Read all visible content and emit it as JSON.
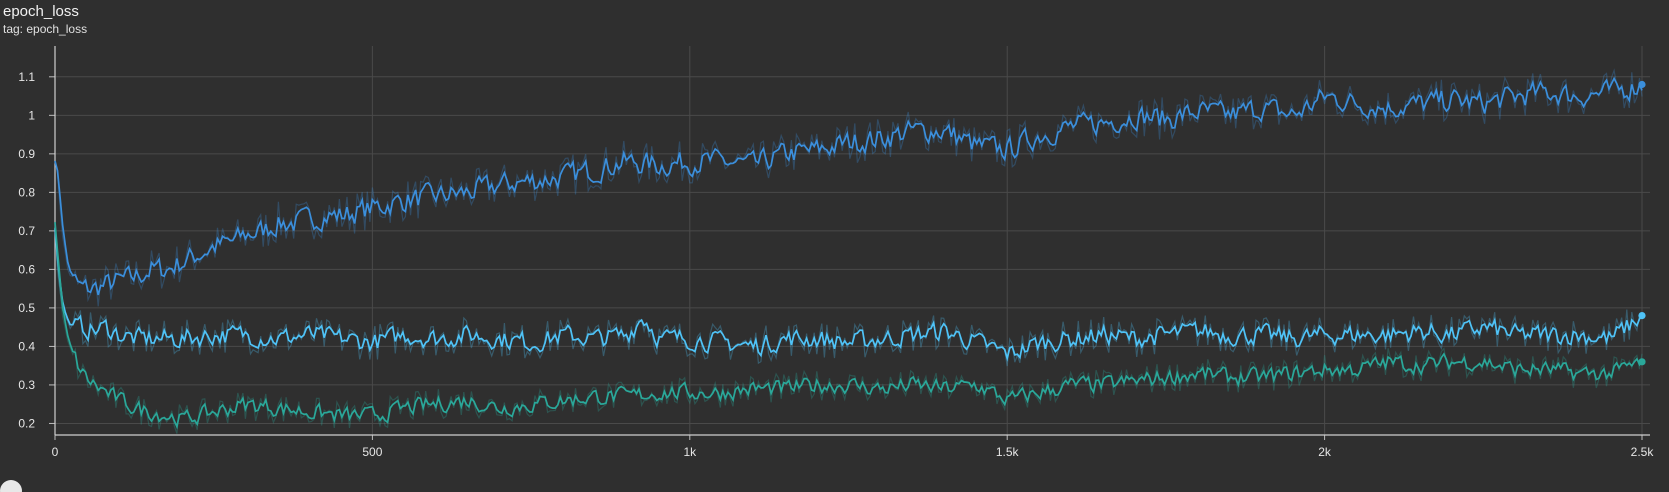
{
  "header": {
    "title": "epoch_loss",
    "tag_label": "tag:",
    "tag_value": "epoch_loss"
  },
  "chart_data": {
    "type": "line",
    "title": "epoch_loss",
    "xlabel": "",
    "ylabel": "",
    "xlim": [
      0,
      2500
    ],
    "ylim": [
      0.17,
      1.18
    ],
    "x_ticks": [
      {
        "value": 0,
        "label": "0"
      },
      {
        "value": 500,
        "label": "500"
      },
      {
        "value": 1000,
        "label": "1k"
      },
      {
        "value": 1500,
        "label": "1.5k"
      },
      {
        "value": 2000,
        "label": "2k"
      },
      {
        "value": 2500,
        "label": "2.5k"
      }
    ],
    "y_ticks": [
      {
        "value": 0.2,
        "label": "0.2"
      },
      {
        "value": 0.3,
        "label": "0.3"
      },
      {
        "value": 0.4,
        "label": "0.4"
      },
      {
        "value": 0.5,
        "label": "0.5"
      },
      {
        "value": 0.6,
        "label": "0.6"
      },
      {
        "value": 0.7,
        "label": "0.7"
      },
      {
        "value": 0.8,
        "label": "0.8"
      },
      {
        "value": 0.9,
        "label": "0.9"
      },
      {
        "value": 1.0,
        "label": "1"
      },
      {
        "value": 1.1,
        "label": "1.1"
      }
    ],
    "grid": true,
    "series": [
      {
        "color": "#3b8fdc",
        "x": [
          0,
          5,
          10,
          15,
          20,
          30,
          40,
          60,
          80,
          100,
          125,
          150,
          175,
          200,
          225,
          250,
          275,
          300,
          325,
          350,
          375,
          400,
          425,
          450,
          475,
          500,
          550,
          600,
          650,
          700,
          750,
          800,
          850,
          900,
          950,
          1000,
          1050,
          1100,
          1150,
          1200,
          1250,
          1300,
          1350,
          1400,
          1450,
          1500,
          1550,
          1600,
          1650,
          1700,
          1750,
          1800,
          1850,
          1900,
          1950,
          2000,
          2050,
          2100,
          2150,
          2200,
          2250,
          2300,
          2350,
          2400,
          2450,
          2500
        ],
        "y": [
          0.89,
          0.83,
          0.72,
          0.65,
          0.6,
          0.57,
          0.55,
          0.55,
          0.56,
          0.57,
          0.58,
          0.6,
          0.6,
          0.62,
          0.64,
          0.66,
          0.67,
          0.69,
          0.7,
          0.72,
          0.72,
          0.73,
          0.74,
          0.74,
          0.75,
          0.76,
          0.78,
          0.79,
          0.8,
          0.82,
          0.83,
          0.84,
          0.86,
          0.88,
          0.87,
          0.88,
          0.88,
          0.87,
          0.9,
          0.91,
          0.93,
          0.94,
          0.96,
          0.96,
          0.92,
          0.91,
          0.95,
          0.97,
          0.98,
          1.0,
          0.99,
          1.01,
          1.0,
          1.02,
          1.0,
          1.05,
          1.03,
          1.02,
          1.03,
          1.04,
          1.03,
          1.05,
          1.06,
          1.05,
          1.06,
          1.08
        ]
      },
      {
        "color": "#4fc3f7",
        "x": [
          0,
          5,
          10,
          15,
          20,
          30,
          40,
          60,
          80,
          100,
          125,
          150,
          175,
          200,
          250,
          300,
          350,
          400,
          450,
          500,
          550,
          600,
          650,
          700,
          750,
          800,
          850,
          900,
          925,
          950,
          1000,
          1050,
          1100,
          1150,
          1200,
          1250,
          1300,
          1350,
          1400,
          1450,
          1500,
          1550,
          1600,
          1650,
          1700,
          1750,
          1800,
          1850,
          1900,
          1950,
          2000,
          2050,
          2100,
          2150,
          2200,
          2250,
          2300,
          2350,
          2400,
          2450,
          2500
        ],
        "y": [
          0.71,
          0.58,
          0.51,
          0.48,
          0.46,
          0.45,
          0.45,
          0.44,
          0.45,
          0.43,
          0.42,
          0.42,
          0.42,
          0.42,
          0.43,
          0.43,
          0.42,
          0.43,
          0.42,
          0.41,
          0.43,
          0.42,
          0.43,
          0.42,
          0.41,
          0.43,
          0.42,
          0.43,
          0.48,
          0.42,
          0.42,
          0.41,
          0.4,
          0.42,
          0.42,
          0.41,
          0.42,
          0.43,
          0.44,
          0.41,
          0.38,
          0.41,
          0.42,
          0.43,
          0.42,
          0.43,
          0.44,
          0.43,
          0.43,
          0.42,
          0.43,
          0.43,
          0.43,
          0.44,
          0.43,
          0.45,
          0.43,
          0.43,
          0.43,
          0.42,
          0.48
        ]
      },
      {
        "color": "#2aa89a",
        "x": [
          0,
          5,
          10,
          15,
          20,
          30,
          40,
          60,
          80,
          100,
          125,
          150,
          175,
          200,
          250,
          300,
          350,
          400,
          450,
          500,
          550,
          600,
          650,
          700,
          750,
          800,
          850,
          900,
          950,
          1000,
          1050,
          1100,
          1150,
          1200,
          1250,
          1300,
          1350,
          1400,
          1450,
          1500,
          1550,
          1600,
          1650,
          1700,
          1750,
          1800,
          1850,
          1900,
          1950,
          2000,
          2050,
          2100,
          2150,
          2200,
          2250,
          2300,
          2350,
          2400,
          2450,
          2500
        ],
        "y": [
          0.72,
          0.6,
          0.5,
          0.45,
          0.41,
          0.37,
          0.33,
          0.3,
          0.28,
          0.26,
          0.24,
          0.23,
          0.22,
          0.21,
          0.23,
          0.25,
          0.24,
          0.23,
          0.22,
          0.22,
          0.24,
          0.25,
          0.26,
          0.24,
          0.25,
          0.26,
          0.27,
          0.27,
          0.28,
          0.28,
          0.28,
          0.29,
          0.29,
          0.3,
          0.3,
          0.29,
          0.3,
          0.29,
          0.3,
          0.26,
          0.28,
          0.3,
          0.3,
          0.31,
          0.32,
          0.33,
          0.32,
          0.32,
          0.33,
          0.34,
          0.34,
          0.36,
          0.35,
          0.36,
          0.36,
          0.34,
          0.34,
          0.33,
          0.33,
          0.36
        ]
      }
    ]
  }
}
